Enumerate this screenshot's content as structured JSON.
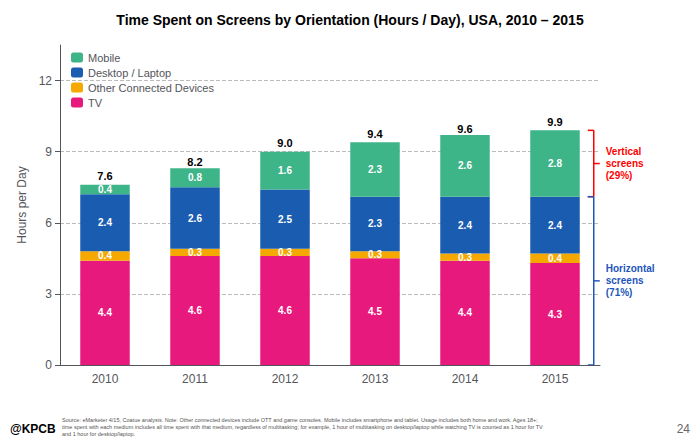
{
  "chart_data": {
    "type": "bar",
    "title": "Time Spent on Screens by Orientation (Hours / Day), USA, 2010 – 2015",
    "ylabel": "Hours per Day",
    "categories": [
      "2010",
      "2011",
      "2012",
      "2013",
      "2014",
      "2015"
    ],
    "series": [
      {
        "name": "TV",
        "color": "#e8197d",
        "values": [
          4.4,
          4.6,
          4.6,
          4.5,
          4.4,
          4.3
        ]
      },
      {
        "name": "Other Connected Devices",
        "color": "#f5a800",
        "values": [
          0.4,
          0.3,
          0.3,
          0.3,
          0.3,
          0.4
        ]
      },
      {
        "name": "Desktop / Laptop",
        "color": "#1a5cb0",
        "values": [
          2.4,
          2.6,
          2.5,
          2.3,
          2.4,
          2.4
        ]
      },
      {
        "name": "Mobile",
        "color": "#3eb489",
        "values": [
          0.4,
          0.8,
          1.6,
          2.3,
          2.6,
          2.8
        ]
      }
    ],
    "totals": {
      "values": [
        7.6,
        8.2,
        9.0,
        9.4,
        9.6,
        9.9
      ],
      "value_labels": [
        "7.6",
        "8.2",
        "9.0",
        "9.4",
        "9.6",
        "9.9"
      ]
    },
    "stacked": true,
    "data_labels": true,
    "ylim": [
      0,
      13.5
    ],
    "yticks": [
      0,
      3,
      6,
      9,
      12
    ],
    "grid": true,
    "legend": "upper left",
    "annotations": [
      {
        "text": "Vertical\nscreens\n(29%)",
        "color": "red"
      },
      {
        "text": "Horizontal\nscreens\n(71%)",
        "color": "#2255bb"
      }
    ],
    "footer_logo": "@KPCB",
    "footer_text": "Source: eMarketer 4/15, Coatue analysis. Note: Other connected devices include OTT and game consoles. Mobile includes smartphone and tablet. Usage includes both home and work. Ages 18+;\ntime spent with each medium includes all time spent with that medium, regardless of multitasking; for example, 1 hour of multitasking on desktop/laptop while watching TV is counted as 1 hour for TV\nand 1 hour for desktop/laptop.",
    "page_number": "24"
  }
}
